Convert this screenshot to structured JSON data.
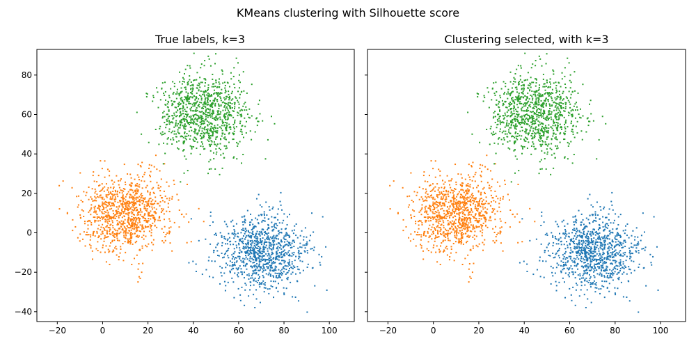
{
  "figure": {
    "suptitle": "KMeans clustering with Silhouette score"
  },
  "colors": {
    "cluster_0": "#1f77b4",
    "cluster_1": "#ff7f0e",
    "cluster_2": "#2ca02c",
    "axes_edge": "#000000",
    "background": "#ffffff"
  },
  "chart_data": [
    {
      "type": "scatter",
      "title": "True labels, k=3",
      "xlabel": "",
      "ylabel": "",
      "xlim": [
        -29,
        111
      ],
      "ylim": [
        -45,
        93
      ],
      "xticks": [
        -20,
        0,
        20,
        40,
        60,
        80,
        100
      ],
      "yticks": [
        -40,
        -20,
        0,
        20,
        40,
        60,
        80
      ],
      "grid": false,
      "legend": "none",
      "show_yticklabels": true,
      "clusters": [
        {
          "center": [
            70,
            -10
          ],
          "spread": [
            10,
            10
          ],
          "count": 1000,
          "color_key": "cluster_0"
        },
        {
          "center": [
            10,
            10
          ],
          "spread": [
            10,
            10
          ],
          "count": 1000,
          "color_key": "cluster_1"
        },
        {
          "center": [
            45,
            60
          ],
          "spread": [
            10,
            10
          ],
          "count": 1000,
          "color_key": "cluster_2"
        }
      ]
    },
    {
      "type": "scatter",
      "title": "Clustering selected, with k=3",
      "xlabel": "",
      "ylabel": "",
      "xlim": [
        -29,
        111
      ],
      "ylim": [
        -45,
        93
      ],
      "xticks": [
        -20,
        0,
        20,
        40,
        60,
        80,
        100
      ],
      "yticks": [
        -40,
        -20,
        0,
        20,
        40,
        60,
        80
      ],
      "grid": false,
      "legend": "none",
      "show_yticklabels": false,
      "clusters": [
        {
          "center": [
            70,
            -10
          ],
          "spread": [
            10,
            10
          ],
          "count": 1000,
          "color_key": "cluster_0"
        },
        {
          "center": [
            10,
            10
          ],
          "spread": [
            10,
            10
          ],
          "count": 1000,
          "color_key": "cluster_1"
        },
        {
          "center": [
            45,
            60
          ],
          "spread": [
            10,
            10
          ],
          "count": 1000,
          "color_key": "cluster_2"
        }
      ]
    }
  ]
}
